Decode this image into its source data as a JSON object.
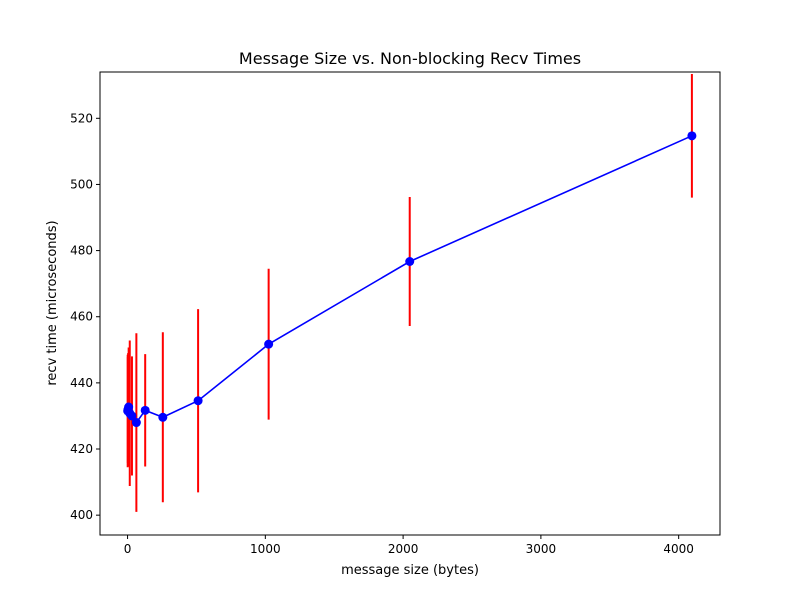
{
  "chart_data": {
    "type": "line",
    "title": "Message Size vs. Non-blocking Recv Times",
    "xlabel": "message size (bytes)",
    "ylabel": "recv time (microseconds)",
    "xlim": [
      -200,
      4300
    ],
    "ylim": [
      394,
      534
    ],
    "x_ticks": [
      0,
      1000,
      2000,
      3000,
      4000
    ],
    "x_tick_labels": [
      "0",
      "1000",
      "2000",
      "3000",
      "4000"
    ],
    "y_ticks": [
      400,
      420,
      440,
      460,
      480,
      500,
      520
    ],
    "y_tick_labels": [
      "400",
      "420",
      "440",
      "460",
      "480",
      "500",
      "520"
    ],
    "grid": false,
    "legend": "none",
    "series": [
      {
        "x": [
          1,
          2,
          4,
          8,
          16,
          32,
          64,
          128,
          256,
          512,
          1024,
          2048,
          4096
        ],
        "y": [
          431.5,
          431.8,
          432.0,
          432.7,
          430.8,
          430.0,
          428.0,
          431.7,
          429.6,
          434.6,
          451.7,
          476.7,
          514.7
        ],
        "error": [
          17,
          16,
          17,
          18,
          22,
          18,
          27,
          17,
          25.7,
          27.7,
          22.8,
          19.5,
          18.7
        ],
        "line_color": "#0000ff",
        "marker_color": "#0000ff",
        "error_color": "#ff0000"
      }
    ]
  }
}
